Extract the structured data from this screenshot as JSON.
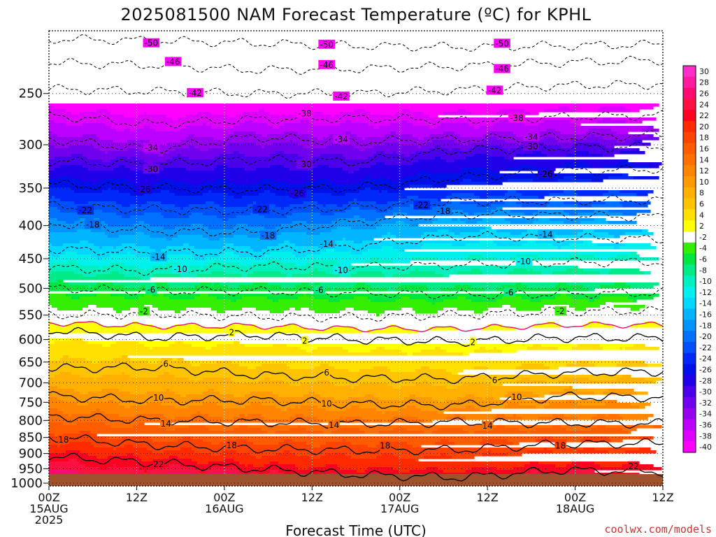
{
  "chart_data": {
    "type": "heatmap",
    "title": "2025081500 NAM Forecast Temperature (ºC) for KPHL",
    "xlabel": "Forecast Time (UTC)",
    "ylabel": "",
    "credit": "coolwx.com/models",
    "x_ticks": [
      {
        "hour": 0,
        "lines": [
          "00Z",
          "15AUG",
          "2025"
        ]
      },
      {
        "hour": 12,
        "lines": [
          "12Z"
        ]
      },
      {
        "hour": 24,
        "lines": [
          "00Z",
          "16AUG"
        ]
      },
      {
        "hour": 36,
        "lines": [
          "12Z"
        ]
      },
      {
        "hour": 48,
        "lines": [
          "00Z",
          "17AUG"
        ]
      },
      {
        "hour": 60,
        "lines": [
          "12Z"
        ]
      },
      {
        "hour": 72,
        "lines": [
          "00Z",
          "18AUG"
        ]
      },
      {
        "hour": 84,
        "lines": [
          "12Z"
        ]
      }
    ],
    "xlim": [
      0,
      84
    ],
    "y_axis": "pressure (hPa), log scale, inverted",
    "y_ticks": [
      250,
      300,
      350,
      400,
      450,
      500,
      550,
      600,
      650,
      700,
      750,
      800,
      850,
      900,
      950,
      1000
    ],
    "ylim": [
      200,
      1010
    ],
    "grid": "dotted",
    "colorbar": {
      "position": "right",
      "labels": [
        30,
        28,
        26,
        24,
        22,
        20,
        18,
        16,
        14,
        12,
        10,
        8,
        6,
        4,
        2,
        -2,
        -4,
        -6,
        -8,
        -10,
        -12,
        -14,
        -16,
        -18,
        -20,
        -22,
        -24,
        -26,
        -28,
        -30,
        -32,
        -34,
        -36,
        -38,
        -40
      ],
      "colors": [
        "#ff2ec8",
        "#ff1a9e",
        "#ff0a6e",
        "#ff1040",
        "#ff0020",
        "#ff2a00",
        "#ff4400",
        "#ff5c00",
        "#ff7000",
        "#ff8400",
        "#ff9a00",
        "#ffb000",
        "#ffc400",
        "#ffe000",
        "#ffff00",
        "#ffffff",
        "#33ee00",
        "#00e640",
        "#00ea88",
        "#00f0c0",
        "#00f0ee",
        "#00d8ff",
        "#00b4ff",
        "#0094ff",
        "#0070ff",
        "#0050ff",
        "#0028f8",
        "#0010e8",
        "#2000e8",
        "#4a00ea",
        "#7000ee",
        "#9600f0",
        "#bb00ff",
        "#dd00ff",
        "#ff00ff"
      ]
    },
    "isotherms": [
      {
        "label": -50,
        "p": [
          206,
          207,
          209,
          211,
          212,
          211,
          210
        ],
        "labels_at": [
          14,
          38,
          62
        ]
      },
      {
        "label": -46,
        "p": [
          224,
          226,
          230,
          229,
          227,
          224,
          222
        ],
        "labels_at": [
          17,
          38,
          62
        ]
      },
      {
        "label": -42,
        "p": [
          246,
          248,
          250,
          250,
          247,
          243,
          242
        ],
        "labels_at": [
          20,
          40,
          61
        ]
      },
      {
        "label": -38,
        "p": [
          270,
          279,
          274,
          273,
          275,
          272,
          270
        ],
        "labels_at": [
          35,
          64
        ]
      },
      {
        "label": -34,
        "p": [
          294,
          305,
          292,
          297,
          294,
          292,
          290
        ],
        "labels_at": [
          14,
          40,
          66
        ]
      },
      {
        "label": -30,
        "p": [
          318,
          322,
          316,
          319,
          306,
          303,
          302
        ],
        "labels_at": [
          14,
          35,
          66
        ]
      },
      {
        "label": -26,
        "p": [
          345,
          350,
          352,
          350,
          337,
          330,
          327
        ],
        "labels_at": [
          13,
          34,
          68
        ]
      },
      {
        "label": -22,
        "p": [
          373,
          378,
          380,
          375,
          367,
          366,
          365
        ],
        "labels_at": [
          5,
          29,
          51
        ]
      },
      {
        "label": -18,
        "p": [
          396,
          408,
          410,
          395,
          384,
          386,
          388
        ],
        "labels_at": [
          6,
          30,
          54
        ]
      },
      {
        "label": -14,
        "p": [
          435,
          440,
          440,
          430,
          415,
          418,
          420
        ],
        "labels_at": [
          15,
          38,
          68
        ]
      },
      {
        "label": -10,
        "p": [
          465,
          470,
          462,
          464,
          460,
          456,
          455
        ],
        "labels_at": [
          18,
          40,
          65
        ]
      },
      {
        "label": -6,
        "p": [
          500,
          505,
          505,
          508,
          512,
          510,
          508
        ],
        "labels_at": [
          14,
          37,
          63
        ]
      },
      {
        "label": -2,
        "p": [
          550,
          548,
          553,
          555,
          550,
          543,
          542
        ],
        "labels_at": [
          13,
          70
        ]
      },
      {
        "label": 2,
        "p": [
          580,
          596,
          590,
          600,
          605,
          596,
          597
        ],
        "labels_at": [
          25,
          35,
          58
        ]
      },
      {
        "label": 6,
        "p": [
          665,
          662,
          680,
          688,
          690,
          676,
          672
        ],
        "labels_at": [
          16,
          38,
          61
        ]
      },
      {
        "label": 10,
        "p": [
          733,
          745,
          744,
          755,
          758,
          735,
          737
        ],
        "labels_at": [
          15,
          38,
          64
        ]
      },
      {
        "label": 14,
        "p": [
          788,
          800,
          805,
          810,
          805,
          808,
          809
        ],
        "labels_at": [
          16,
          39,
          60
        ]
      },
      {
        "label": 18,
        "p": [
          848,
          873,
          885,
          890,
          888,
          870,
          868
        ],
        "labels_at": [
          2,
          25,
          46,
          70
        ]
      },
      {
        "label": 22,
        "p": [
          910,
          930,
          950,
          970,
          980,
          955,
          960
        ],
        "labels_at": [
          15,
          80
        ]
      }
    ]
  }
}
